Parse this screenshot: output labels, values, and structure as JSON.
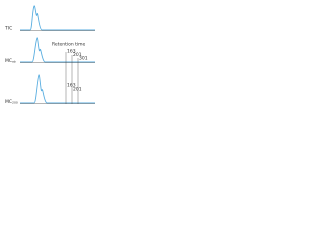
{
  "traces": [
    {
      "label": "TIC"
    },
    {
      "label": "MC",
      "subscript": "ab"
    },
    {
      "label": "MC",
      "subscript": "200"
    }
  ],
  "axis_label": "Retention time",
  "markers_upper": [
    "163",
    "201",
    "301"
  ],
  "markers_lower": [
    "163",
    "201"
  ]
}
